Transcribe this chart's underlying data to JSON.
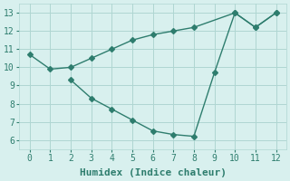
{
  "line1_x": [
    0,
    1,
    2,
    3,
    4,
    5,
    6,
    7,
    8,
    10,
    11,
    12
  ],
  "line1_y": [
    10.7,
    9.9,
    10.0,
    10.5,
    11.0,
    11.5,
    11.8,
    12.0,
    12.2,
    13.0,
    12.2,
    13.0
  ],
  "line2_x": [
    2,
    3,
    4,
    5,
    6,
    7,
    8,
    9,
    10,
    11,
    12
  ],
  "line2_y": [
    9.3,
    8.3,
    7.7,
    7.1,
    6.5,
    6.3,
    6.2,
    9.7,
    13.0,
    12.2,
    13.0
  ],
  "line_color": "#2e7d6e",
  "bg_color": "#d8f0ee",
  "grid_color": "#afd6d2",
  "xlabel": "Humidex (Indice chaleur)",
  "xlim": [
    -0.5,
    12.5
  ],
  "ylim": [
    5.5,
    13.5
  ],
  "xticks": [
    0,
    1,
    2,
    3,
    4,
    5,
    6,
    7,
    8,
    9,
    10,
    11,
    12
  ],
  "yticks": [
    6,
    7,
    8,
    9,
    10,
    11,
    12,
    13
  ],
  "xlabel_fontsize": 8,
  "tick_fontsize": 7,
  "marker_size": 3,
  "line_width": 1.0
}
